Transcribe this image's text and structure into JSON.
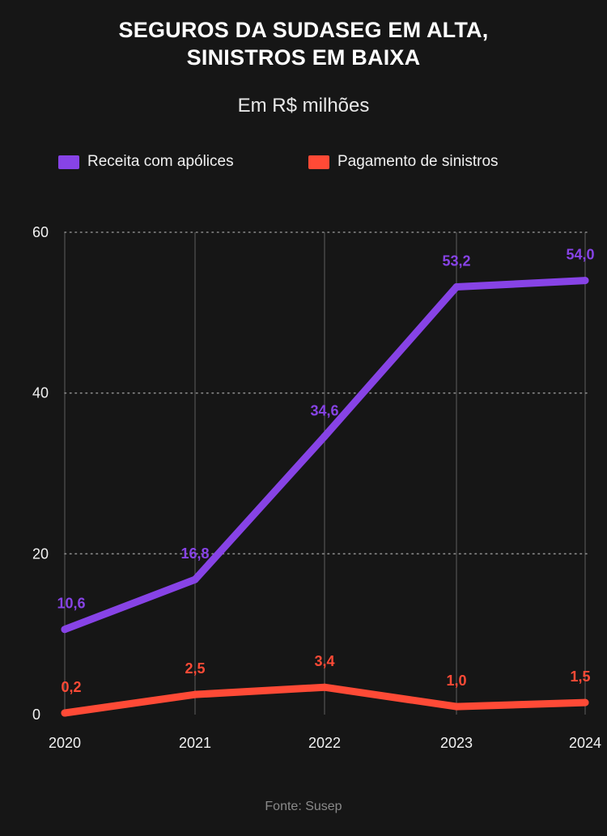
{
  "title_line1": "SEGUROS DA SUDASEG EM ALTA,",
  "title_line2": "SINISTROS EM BAIXA",
  "subtitle": "Em R$ milhões",
  "source": "Fonte: Susep",
  "colors": {
    "background": "#161616",
    "receita": "#8743E6",
    "sinistros": "#FF4A36",
    "grid": "#6a6a6a"
  },
  "chart_data": {
    "type": "line",
    "categories": [
      "2020",
      "2021",
      "2022",
      "2023",
      "2024"
    ],
    "series": [
      {
        "name": "Receita com apólices",
        "color": "#8743E6",
        "values": [
          10.6,
          16.8,
          34.6,
          53.2,
          54.0
        ],
        "labels": [
          "10,6",
          "16,8",
          "34,6",
          "53,2",
          "54,0"
        ]
      },
      {
        "name": "Pagamento de sinistros",
        "color": "#FF4A36",
        "values": [
          0.2,
          2.5,
          3.4,
          1.0,
          1.5
        ],
        "labels": [
          "0,2",
          "2,5",
          "3,4",
          "1,0",
          "1,5"
        ]
      }
    ],
    "ylim": [
      0,
      60
    ],
    "yticks": [
      0,
      20,
      40,
      60
    ],
    "ytick_labels": [
      "0",
      "20",
      "40",
      "60"
    ],
    "grid": "dotted horizontal, solid vertical",
    "legend": "top"
  }
}
